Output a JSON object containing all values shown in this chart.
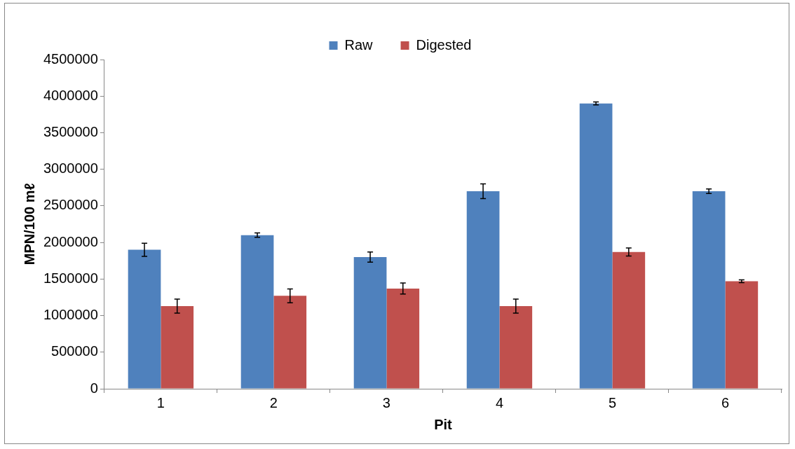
{
  "chart_data": {
    "type": "bar",
    "xlabel": "Pit",
    "ylabel": "MPN/100 mℓ",
    "categories": [
      "1",
      "2",
      "3",
      "4",
      "5",
      "6"
    ],
    "series": [
      {
        "name": "Raw",
        "color": "#4f81bd",
        "values": [
          1900000,
          2100000,
          1800000,
          2700000,
          3900000,
          2700000
        ],
        "errors": [
          90000,
          30000,
          70000,
          100000,
          20000,
          30000
        ]
      },
      {
        "name": "Digested",
        "color": "#c0504d",
        "values": [
          1130000,
          1270000,
          1370000,
          1130000,
          1870000,
          1470000
        ],
        "errors": [
          95000,
          95000,
          75000,
          95000,
          55000,
          20000
        ]
      }
    ],
    "ylim": [
      0,
      4500000
    ],
    "yticks": [
      0,
      500000,
      1000000,
      1500000,
      2000000,
      2500000,
      3000000,
      3500000,
      4000000,
      4500000
    ],
    "grid": false,
    "legend": "top"
  }
}
